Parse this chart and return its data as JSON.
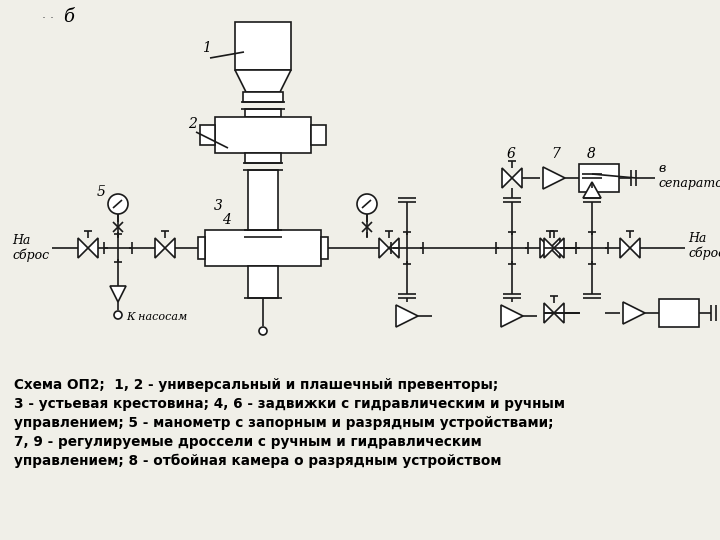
{
  "bg_color": "#f0efe8",
  "line_color": "#1a1a1a",
  "title_text": "Схема ОП2;  1, 2 - универсальный и плашечный превенторы;\n3 - устьевая крестовина; 4, 6 - задвижки с гидравлическим и ручным\nуправлением; 5 - манометр с запорным и разрядным устройствами;\n7, 9 - регулируемые дроссели с ручным и гидравлическим\nуправлением; 8 - отбойная камера о разрядным устройством",
  "label_b": "б",
  "label_1": "1",
  "label_2": "2",
  "label_3": "3",
  "label_4": "4",
  "label_5": "5",
  "label_6": "6",
  "label_7": "7",
  "label_8": "8",
  "label_na_sbros_left": "На\nсброс",
  "label_na_sbros_right": "На\nсброс",
  "label_k_nasosam": "К насосам",
  "label_v_separator": "в\nсепаратор"
}
